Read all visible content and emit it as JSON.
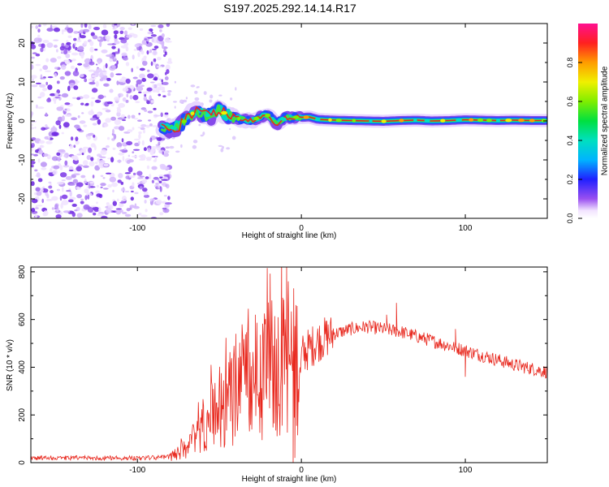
{
  "title": "S197.2025.292.14.14.R17",
  "colors": {
    "trace": "#e8281e",
    "frame": "#000000",
    "ridge": "#e8281e"
  },
  "chart_data": [
    {
      "type": "heatmap",
      "id": "spectrogram",
      "xlabel": "Height of straight line (km)",
      "ylabel": "Frequency (Hz)",
      "xlim": [
        -165,
        150
      ],
      "ylim": [
        -25,
        25
      ],
      "xticks": [
        -100,
        0,
        100
      ],
      "yticks": [
        -20,
        -10,
        0,
        10,
        20
      ],
      "colorbar": {
        "label": "Normalized spectral amplitude",
        "range": [
          0,
          1
        ],
        "ticks": [
          "0.0",
          "0.2",
          "0.4",
          "0.6",
          "0.8"
        ]
      },
      "ridge": {
        "x": [
          -85,
          -80,
          -75,
          -70,
          -65,
          -60,
          -55,
          -50,
          -45,
          -40,
          -35,
          -30,
          -25,
          -20,
          -15,
          -10,
          -5,
          0,
          5,
          10,
          20,
          30,
          40,
          50,
          60,
          70,
          80,
          90,
          100,
          110,
          120,
          130,
          140,
          150
        ],
        "freq": [
          -1.8,
          -2.0,
          -1.5,
          0.5,
          2.5,
          1.8,
          1.2,
          2.8,
          1.5,
          0.8,
          0.2,
          0.0,
          1.2,
          1.5,
          -1.0,
          0.8,
          1.0,
          0.9,
          1.0,
          0.4,
          0.2,
          0.1,
          0.0,
          -0.1,
          0.1,
          0.2,
          0.0,
          0.1,
          0.3,
          0.2,
          0.1,
          0.2,
          0.1,
          0.1
        ]
      },
      "noise_region": [
        -165,
        -83
      ]
    },
    {
      "type": "line",
      "id": "snr",
      "xlabel": "Height of straight line (km)",
      "ylabel": "SNR (10 * v/v)",
      "xlim": [
        -165,
        150
      ],
      "ylim": [
        0,
        820
      ],
      "xticks": [
        -100,
        0,
        100
      ],
      "yticks": [
        0,
        200,
        400,
        600,
        800
      ],
      "envelope": {
        "x": [
          -165,
          -120,
          -90,
          -80,
          -75,
          -70,
          -65,
          -60,
          -55,
          -50,
          -45,
          -40,
          -35,
          -30,
          -25,
          -20,
          -15,
          -10,
          -5,
          0,
          5,
          10,
          20,
          30,
          40,
          50,
          60,
          70,
          80,
          90,
          100,
          110,
          120,
          130,
          140,
          150
        ],
        "snr": [
          20,
          20,
          20,
          25,
          40,
          70,
          110,
          150,
          190,
          230,
          260,
          290,
          320,
          350,
          370,
          390,
          410,
          420,
          430,
          450,
          480,
          510,
          540,
          560,
          570,
          560,
          550,
          530,
          510,
          490,
          470,
          450,
          430,
          410,
          395,
          380
        ]
      },
      "spikes": [
        {
          "x": -9,
          "snr": 820
        },
        {
          "x": -8,
          "snr": 760
        },
        {
          "x": -5,
          "snr": 0
        },
        {
          "x": -4,
          "snr": 20
        },
        {
          "x": -28,
          "snr": 620
        },
        {
          "x": -40,
          "snr": 540
        },
        {
          "x": -12,
          "snr": 570
        },
        {
          "x": 58,
          "snr": 670
        },
        {
          "x": 52,
          "snr": 620
        },
        {
          "x": 94,
          "snr": 560
        },
        {
          "x": 100,
          "snr": 360
        }
      ]
    }
  ]
}
